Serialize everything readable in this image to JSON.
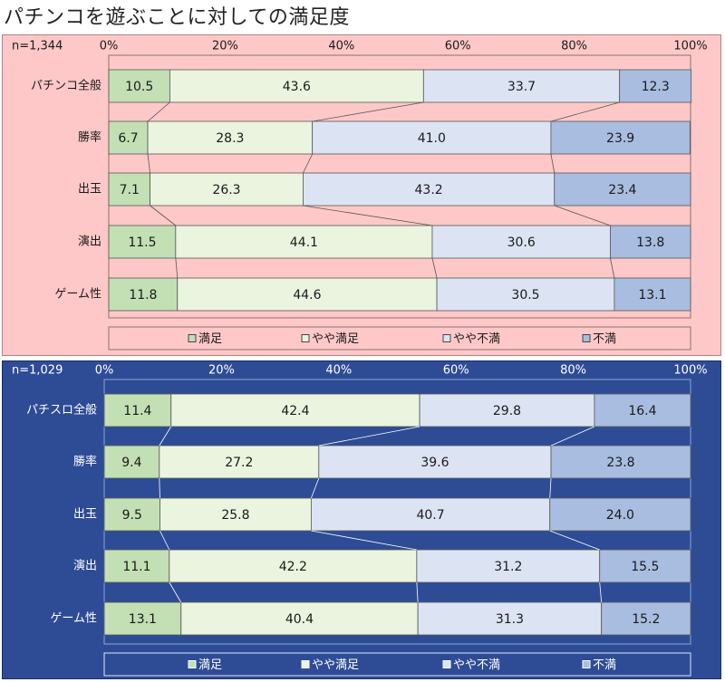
{
  "page_title": "パチンコを遊ぶことに対しての満足度",
  "chart_data": [
    {
      "type": "bar",
      "orientation": "horizontal",
      "stacked": "100%",
      "sample_size": "n=1,344",
      "categories": [
        "パチンコ全般",
        "勝率",
        "出玉",
        "演出",
        "ゲーム性"
      ],
      "x_ticks": [
        "0%",
        "20%",
        "40%",
        "60%",
        "80%",
        "100%"
      ],
      "xlim": [
        0,
        100
      ],
      "series": [
        {
          "name": "満足",
          "values": [
            10.5,
            6.7,
            7.1,
            11.5,
            11.8
          ]
        },
        {
          "name": "やや満足",
          "values": [
            43.6,
            28.3,
            26.3,
            44.1,
            44.6
          ]
        },
        {
          "name": "やや不満",
          "values": [
            33.7,
            41.0,
            43.2,
            30.6,
            30.5
          ]
        },
        {
          "name": "不満",
          "values": [
            12.3,
            23.9,
            23.4,
            13.8,
            13.1
          ]
        }
      ],
      "legend_position": "bottom",
      "series_connector_lines": true,
      "colors": {
        "panel_bg": "#ffc8c8",
        "panel_border": "#b08080",
        "text": "#1a1a1a",
        "legend_bg": "#ffc8c8",
        "connector": "#555555"
      }
    },
    {
      "type": "bar",
      "orientation": "horizontal",
      "stacked": "100%",
      "sample_size": "n=1,029",
      "categories": [
        "パチスロ全般",
        "勝率",
        "出玉",
        "演出",
        "ゲーム性"
      ],
      "x_ticks": [
        "0%",
        "20%",
        "40%",
        "60%",
        "80%",
        "100%"
      ],
      "xlim": [
        0,
        100
      ],
      "series": [
        {
          "name": "満足",
          "values": [
            11.4,
            9.4,
            9.5,
            11.1,
            13.1
          ]
        },
        {
          "name": "やや満足",
          "values": [
            42.4,
            27.2,
            25.8,
            42.2,
            40.4
          ]
        },
        {
          "name": "やや不満",
          "values": [
            29.8,
            39.6,
            40.7,
            31.2,
            31.3
          ]
        },
        {
          "name": "不満",
          "values": [
            16.4,
            23.8,
            24.0,
            15.5,
            15.2
          ]
        }
      ],
      "legend_position": "bottom",
      "series_connector_lines": true,
      "colors": {
        "panel_bg": "#2e4c96",
        "panel_border": "#1b2f66",
        "text": "#ffffff",
        "legend_bg": "#2e4c96",
        "connector": "#ffffff"
      }
    }
  ],
  "series_colors": [
    "#c2e0b4",
    "#eaf4df",
    "#dce4f4",
    "#a9bde0"
  ]
}
